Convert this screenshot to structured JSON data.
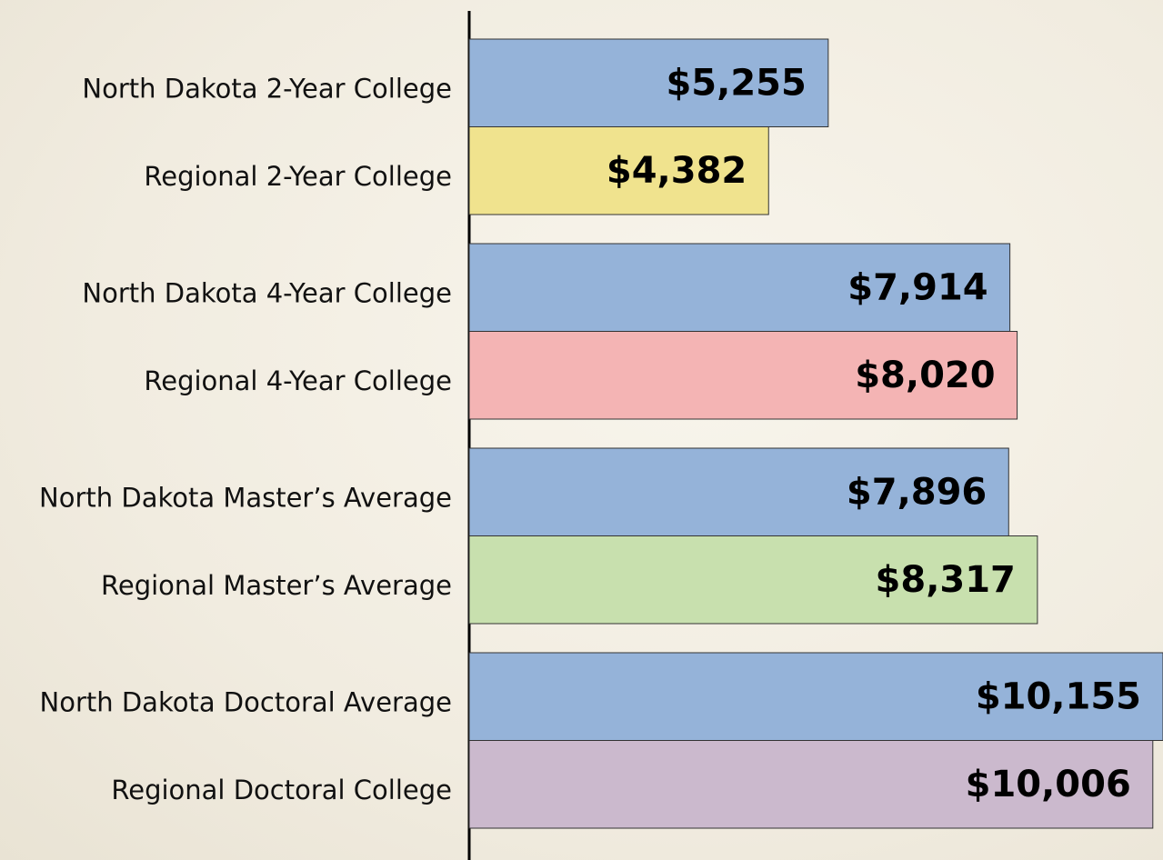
{
  "chart_data": {
    "type": "hbar",
    "categories": [
      "North Dakota 2-Year College",
      "Regional 2-Year College",
      "North Dakota 4-Year College",
      "Regional 4-Year College",
      "North Dakota Master’s Average",
      "Regional Master’s Average",
      "North Dakota Doctoral Average",
      "Regional Doctoral College"
    ],
    "values": [
      5255,
      4382,
      7914,
      8020,
      7896,
      8317,
      10155,
      10006
    ],
    "value_labels": [
      "$5,255",
      "$4,382",
      "$7,914",
      "$8,020",
      "$7,896",
      "$8,317",
      "$10,155",
      "$10,006"
    ],
    "colors": [
      "#95b3d9",
      "#f0e38e",
      "#f4b4b4",
      "#c8e0ae",
      "#cbb9cd"
    ],
    "bar_colors": [
      "#95b3d9",
      "#f0e38e",
      "#95b3d9",
      "#f4b4b4",
      "#95b3d9",
      "#c8e0ae",
      "#95b3d9",
      "#cbb9cd"
    ],
    "xlim": [
      0,
      10155
    ]
  }
}
